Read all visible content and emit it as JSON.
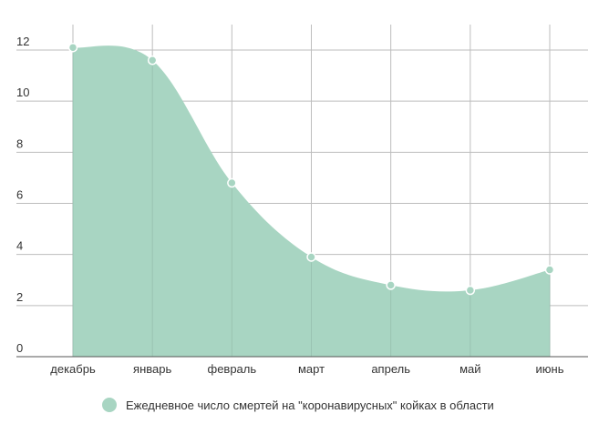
{
  "chart_data": {
    "type": "area",
    "categories": [
      "декабрь",
      "январь",
      "февраль",
      "март",
      "апрель",
      "май",
      "июнь"
    ],
    "series": [
      {
        "name": "Ежедневное число смертей на \"коронавирусных\" койках в области",
        "values": [
          12.1,
          11.6,
          6.8,
          3.9,
          2.8,
          2.6,
          3.4
        ],
        "color": "#a8d5c2"
      }
    ],
    "yticks": [
      0,
      2,
      4,
      6,
      8,
      10,
      12
    ],
    "ylim": [
      0,
      12
    ],
    "title": "",
    "xlabel": "",
    "ylabel": "",
    "grid": true,
    "legend_position": "bottom"
  }
}
